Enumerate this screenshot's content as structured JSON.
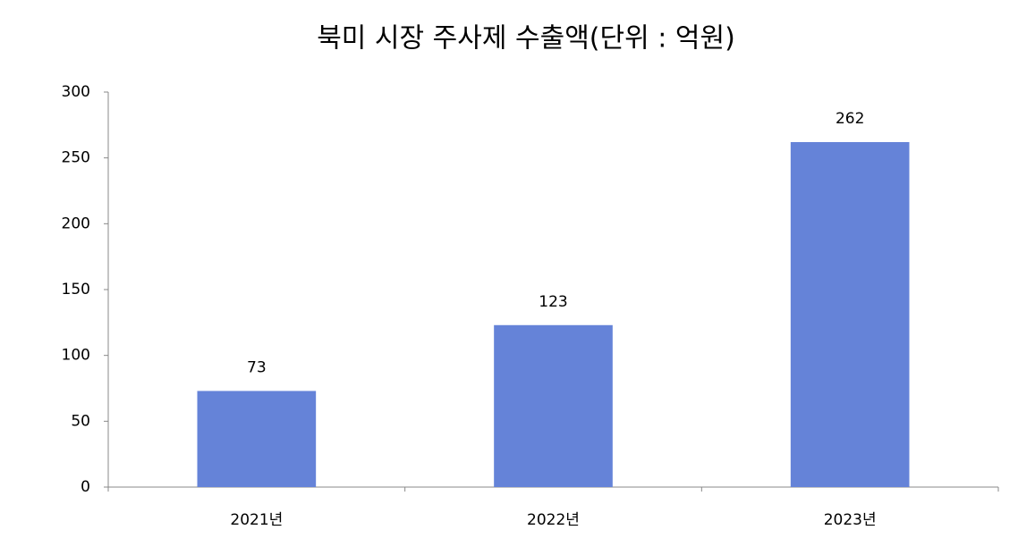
{
  "chart_data": {
    "type": "bar",
    "title": "북미 시장 주사제 수출액(단위 : 억원)",
    "categories": [
      "2021년",
      "2022년",
      "2023년"
    ],
    "values": [
      73,
      123,
      262
    ],
    "color": "#6583d8",
    "ylim": [
      0,
      300
    ],
    "yticks": [
      0,
      50,
      100,
      150,
      200,
      250,
      300
    ],
    "grid": false,
    "data_labels": true
  }
}
